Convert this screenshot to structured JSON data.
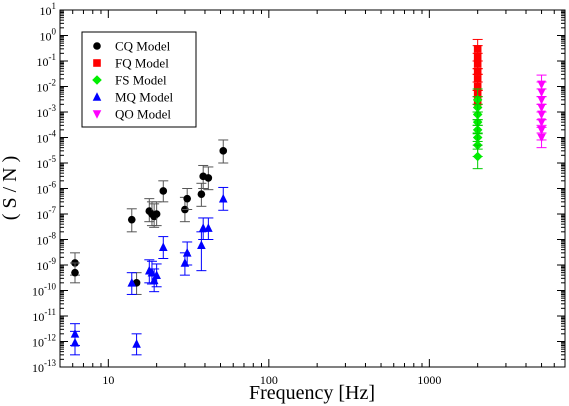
{
  "chart_data": {
    "type": "scatter",
    "xlabel": "Frequency [Hz]",
    "ylabel": "( S / N )",
    "xscale": "log",
    "yscale": "log",
    "xlim": [
      5,
      7000
    ],
    "ylim": [
      1e-13,
      10
    ],
    "grid": false,
    "legend_position": "top-left",
    "x_tick_labels": [
      {
        "value": 10,
        "label": "10"
      },
      {
        "value": 100,
        "label": "100"
      },
      {
        "value": 1000,
        "label": "1000"
      }
    ],
    "y_tick_labels": [
      {
        "value": 10,
        "base": "10",
        "exp": "1"
      },
      {
        "value": 1,
        "base": "10",
        "exp": "0"
      },
      {
        "value": 0.1,
        "base": "10",
        "exp": "-1"
      },
      {
        "value": 0.01,
        "base": "10",
        "exp": "-2"
      },
      {
        "value": 0.001,
        "base": "10",
        "exp": "-3"
      },
      {
        "value": 0.0001,
        "base": "10",
        "exp": "-4"
      },
      {
        "value": 1e-05,
        "base": "10",
        "exp": "-5"
      },
      {
        "value": 1e-06,
        "base": "10",
        "exp": "-6"
      },
      {
        "value": 1e-07,
        "base": "10",
        "exp": "-7"
      },
      {
        "value": 1e-08,
        "base": "10",
        "exp": "-8"
      },
      {
        "value": 1e-09,
        "base": "10",
        "exp": "-9"
      },
      {
        "value": 1e-10,
        "base": "10",
        "exp": "-10"
      },
      {
        "value": 1e-11,
        "base": "10",
        "exp": "-11"
      },
      {
        "value": 1e-12,
        "base": "10",
        "exp": "-12"
      },
      {
        "value": 1e-13,
        "base": "10",
        "exp": "-13"
      }
    ],
    "series": [
      {
        "name": "CQ Model",
        "marker": "circle",
        "color": "#000000",
        "errcolor": "#555555",
        "points": [
          {
            "x": 6.2,
            "y": 1.2e-09,
            "lo": 4e-10,
            "hi": 3e-09
          },
          {
            "x": 6.2,
            "y": 5e-10,
            "lo": 2e-10,
            "hi": 1.2e-09
          },
          {
            "x": 14.0,
            "y": 6e-08,
            "lo": 2e-08,
            "hi": 1.6e-07
          },
          {
            "x": 15.0,
            "y": 2e-10,
            "lo": 7e-11,
            "hi": 5e-10
          },
          {
            "x": 18.0,
            "y": 1.3e-07,
            "lo": 5e-08,
            "hi": 4e-07
          },
          {
            "x": 18.7,
            "y": 1e-07,
            "lo": 3.5e-08,
            "hi": 3e-07
          },
          {
            "x": 19.3,
            "y": 8e-08,
            "lo": 3e-08,
            "hi": 2.5e-07
          },
          {
            "x": 20.0,
            "y": 1e-07,
            "lo": 3.5e-08,
            "hi": 3e-07
          },
          {
            "x": 22.0,
            "y": 8e-07,
            "lo": 3e-07,
            "hi": 2e-06
          },
          {
            "x": 30.0,
            "y": 1.5e-07,
            "lo": 5e-08,
            "hi": 4.5e-07
          },
          {
            "x": 31.0,
            "y": 4e-07,
            "lo": 1.5e-07,
            "hi": 1e-06
          },
          {
            "x": 38.0,
            "y": 6e-07,
            "lo": 2e-07,
            "hi": 1.6e-06
          },
          {
            "x": 39.0,
            "y": 3e-06,
            "lo": 1e-06,
            "hi": 8e-06
          },
          {
            "x": 42.0,
            "y": 2.6e-06,
            "lo": 9e-07,
            "hi": 7e-06
          },
          {
            "x": 52.0,
            "y": 3e-05,
            "lo": 1e-05,
            "hi": 8e-05
          }
        ]
      },
      {
        "name": "FQ Model",
        "marker": "square",
        "color": "#ff0000",
        "errcolor": "#ff0000",
        "points": [
          {
            "x": 2000,
            "y": 0.3,
            "lo": 0.1,
            "hi": 0.7
          },
          {
            "x": 2000,
            "y": 0.15,
            "lo": 0.05,
            "hi": 0.4
          },
          {
            "x": 2000,
            "y": 0.08,
            "lo": 0.03,
            "hi": 0.2
          },
          {
            "x": 2000,
            "y": 0.04,
            "lo": 0.015,
            "hi": 0.1
          },
          {
            "x": 2000,
            "y": 0.02,
            "lo": 0.007,
            "hi": 0.05
          },
          {
            "x": 2000,
            "y": 0.01,
            "lo": 0.004,
            "hi": 0.03
          },
          {
            "x": 2000,
            "y": 0.005,
            "lo": 0.002,
            "hi": 0.015
          },
          {
            "x": 2000,
            "y": 0.0025,
            "lo": 0.001,
            "hi": 0.007
          }
        ]
      },
      {
        "name": "FS Model",
        "marker": "diamond",
        "color": "#00ee00",
        "errcolor": "#00cc00",
        "points": [
          {
            "x": 2000,
            "y": 0.003,
            "lo": 0.001,
            "hi": 0.008
          },
          {
            "x": 2000,
            "y": 0.0015,
            "lo": 0.0005,
            "hi": 0.004
          },
          {
            "x": 2000,
            "y": 0.0008,
            "lo": 0.0003,
            "hi": 0.002
          },
          {
            "x": 2000,
            "y": 0.0004,
            "lo": 0.00015,
            "hi": 0.001
          },
          {
            "x": 2000,
            "y": 0.0002,
            "lo": 7e-05,
            "hi": 0.0005
          },
          {
            "x": 2000,
            "y": 0.0001,
            "lo": 3.5e-05,
            "hi": 0.0003
          },
          {
            "x": 2000,
            "y": 5e-05,
            "lo": 1.8e-05,
            "hi": 0.00014
          },
          {
            "x": 2000,
            "y": 1.8e-05,
            "lo": 6e-06,
            "hi": 5e-05
          }
        ]
      },
      {
        "name": "MQ Model",
        "marker": "triangle-up",
        "color": "#0000ff",
        "errcolor": "#0000ff",
        "points": [
          {
            "x": 6.2,
            "y": 2e-12,
            "lo": 7e-13,
            "hi": 5e-12
          },
          {
            "x": 6.2,
            "y": 9e-13,
            "lo": 3e-13,
            "hi": 2.5e-12
          },
          {
            "x": 14.0,
            "y": 2e-10,
            "lo": 7e-11,
            "hi": 5e-10
          },
          {
            "x": 15.0,
            "y": 8e-13,
            "lo": 3e-13,
            "hi": 2e-12
          },
          {
            "x": 18.0,
            "y": 6e-10,
            "lo": 2e-10,
            "hi": 1.6e-09
          },
          {
            "x": 18.7,
            "y": 5e-10,
            "lo": 1.8e-10,
            "hi": 1.4e-09
          },
          {
            "x": 19.3,
            "y": 2.5e-10,
            "lo": 9e-11,
            "hi": 7e-10
          },
          {
            "x": 20.0,
            "y": 4e-10,
            "lo": 1.4e-10,
            "hi": 1.1e-09
          },
          {
            "x": 22.0,
            "y": 5e-09,
            "lo": 1.8e-09,
            "hi": 1.3e-08
          },
          {
            "x": 30.0,
            "y": 1.2e-09,
            "lo": 4e-10,
            "hi": 3e-09
          },
          {
            "x": 31.0,
            "y": 3e-09,
            "lo": 1e-09,
            "hi": 8e-09
          },
          {
            "x": 38.0,
            "y": 6e-09,
            "lo": 6e-10,
            "hi": 2e-08
          },
          {
            "x": 39.0,
            "y": 2.8e-08,
            "lo": 1e-08,
            "hi": 7e-08
          },
          {
            "x": 42.0,
            "y": 2.8e-08,
            "lo": 1e-08,
            "hi": 7e-08
          },
          {
            "x": 52.0,
            "y": 4e-07,
            "lo": 1.4e-07,
            "hi": 1.1e-06
          }
        ]
      },
      {
        "name": "QO Model",
        "marker": "triangle-down",
        "color": "#ff00ff",
        "errcolor": "#ff00ff",
        "points": [
          {
            "x": 5000,
            "y": 0.012,
            "lo": 0.004,
            "hi": 0.028
          },
          {
            "x": 5000,
            "y": 0.006,
            "lo": 0.002,
            "hi": 0.015
          },
          {
            "x": 5000,
            "y": 0.003,
            "lo": 0.001,
            "hi": 0.008
          },
          {
            "x": 5000,
            "y": 0.0015,
            "lo": 0.0005,
            "hi": 0.004
          },
          {
            "x": 5000,
            "y": 0.0008,
            "lo": 0.0003,
            "hi": 0.002
          },
          {
            "x": 5000,
            "y": 0.0004,
            "lo": 0.00015,
            "hi": 0.001
          },
          {
            "x": 5000,
            "y": 0.0002,
            "lo": 8e-05,
            "hi": 0.0005
          },
          {
            "x": 5000,
            "y": 0.0001,
            "lo": 4e-05,
            "hi": 0.00025
          }
        ]
      }
    ]
  }
}
